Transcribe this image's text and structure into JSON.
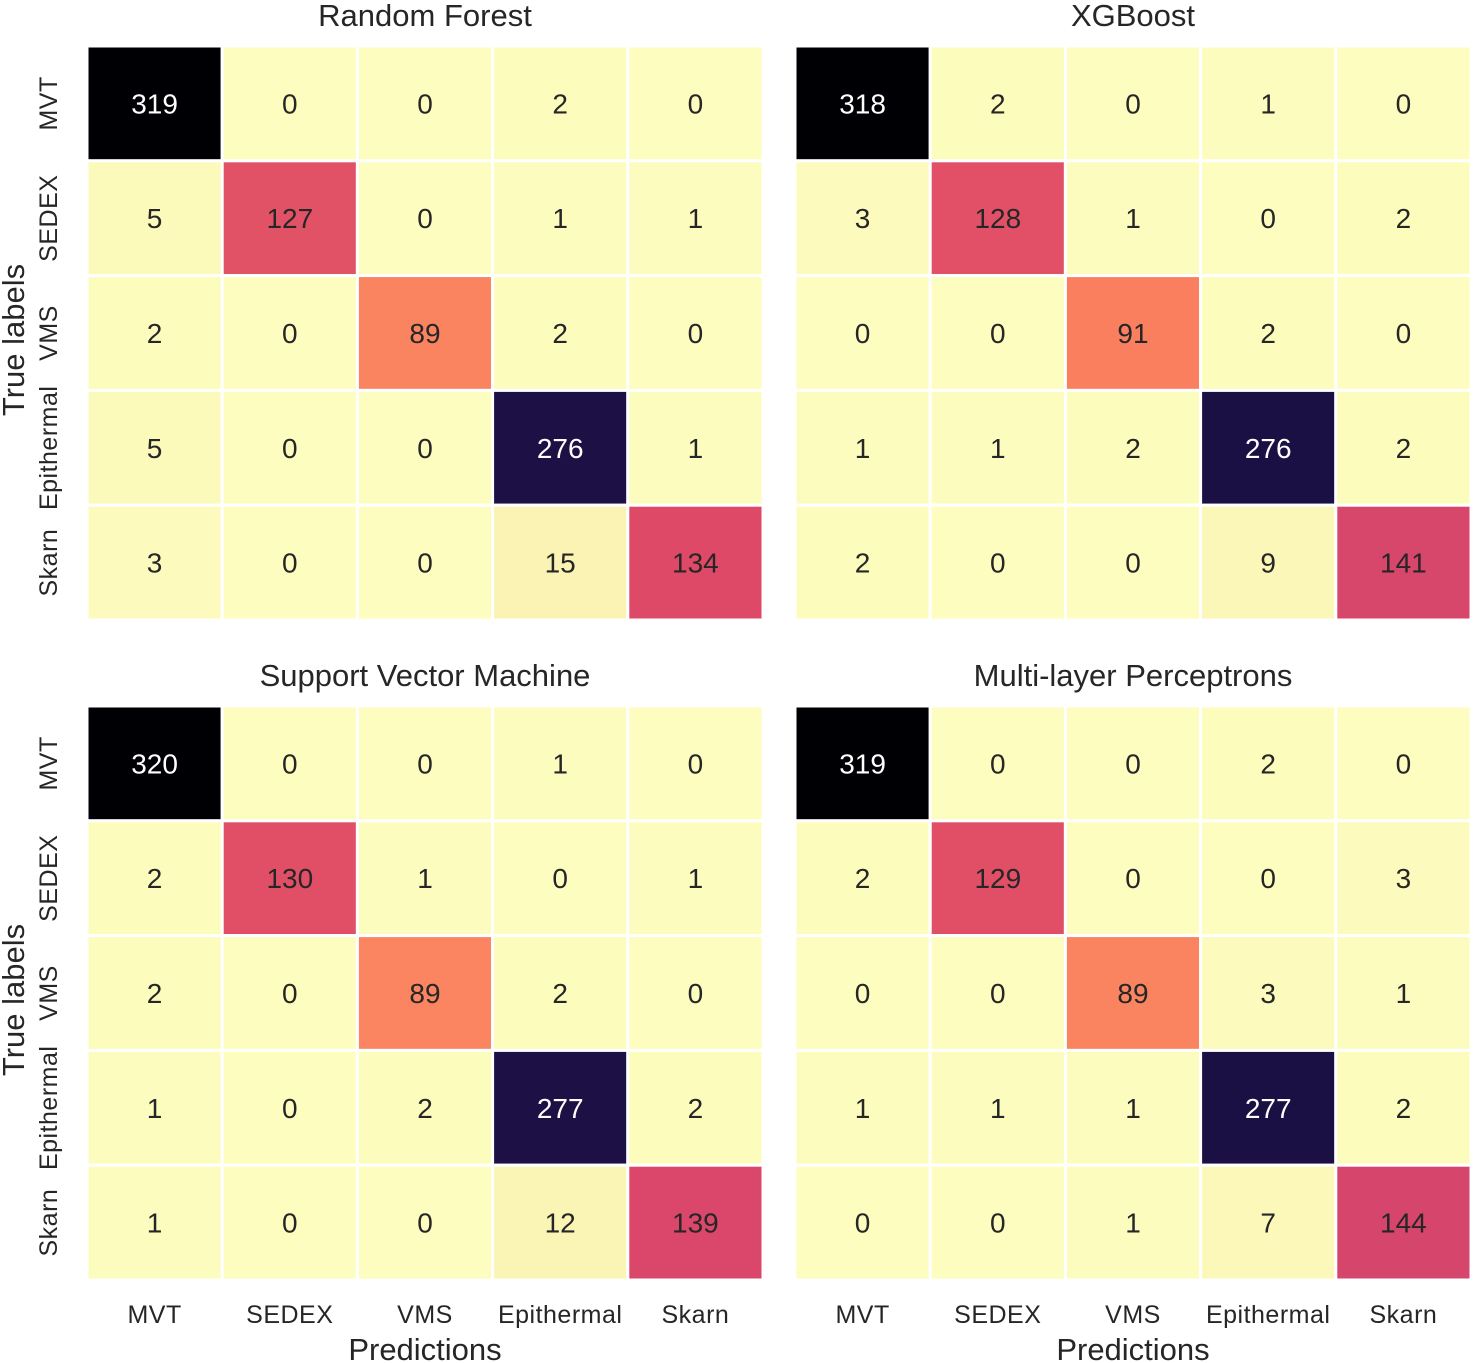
{
  "chart_data": [
    {
      "type": "heatmap",
      "title": "Random Forest",
      "xlabel": "Predictions",
      "ylabel": "True labels",
      "x_categories": [
        "MVT",
        "SEDEX",
        "VMS",
        "Epithermal",
        "Skarn"
      ],
      "y_categories": [
        "MVT",
        "SEDEX",
        "VMS",
        "Epithermal",
        "Skarn"
      ],
      "values": [
        [
          319,
          0,
          0,
          2,
          0
        ],
        [
          5,
          127,
          0,
          1,
          1
        ],
        [
          2,
          0,
          89,
          2,
          0
        ],
        [
          5,
          0,
          0,
          276,
          1
        ],
        [
          3,
          0,
          0,
          15,
          134
        ]
      ],
      "show_xticklabels": false,
      "show_yticklabels": true,
      "show_xlabel": false,
      "show_ylabel": true
    },
    {
      "type": "heatmap",
      "title": "XGBoost",
      "xlabel": "Predictions",
      "ylabel": "True labels",
      "x_categories": [
        "MVT",
        "SEDEX",
        "VMS",
        "Epithermal",
        "Skarn"
      ],
      "y_categories": [
        "MVT",
        "SEDEX",
        "VMS",
        "Epithermal",
        "Skarn"
      ],
      "values": [
        [
          318,
          2,
          0,
          1,
          0
        ],
        [
          3,
          128,
          1,
          0,
          2
        ],
        [
          0,
          0,
          91,
          2,
          0
        ],
        [
          1,
          1,
          2,
          276,
          2
        ],
        [
          2,
          0,
          0,
          9,
          141
        ]
      ],
      "show_xticklabels": false,
      "show_yticklabels": false,
      "show_xlabel": false,
      "show_ylabel": false
    },
    {
      "type": "heatmap",
      "title": "Support Vector Machine",
      "xlabel": "Predictions",
      "ylabel": "True labels",
      "x_categories": [
        "MVT",
        "SEDEX",
        "VMS",
        "Epithermal",
        "Skarn"
      ],
      "y_categories": [
        "MVT",
        "SEDEX",
        "VMS",
        "Epithermal",
        "Skarn"
      ],
      "values": [
        [
          320,
          0,
          0,
          1,
          0
        ],
        [
          2,
          130,
          1,
          0,
          1
        ],
        [
          2,
          0,
          89,
          2,
          0
        ],
        [
          1,
          0,
          2,
          277,
          2
        ],
        [
          1,
          0,
          0,
          12,
          139
        ]
      ],
      "show_xticklabels": true,
      "show_yticklabels": true,
      "show_xlabel": true,
      "show_ylabel": true
    },
    {
      "type": "heatmap",
      "title": "Multi-layer Perceptrons",
      "xlabel": "Predictions",
      "ylabel": "True labels",
      "x_categories": [
        "MVT",
        "SEDEX",
        "VMS",
        "Epithermal",
        "Skarn"
      ],
      "y_categories": [
        "MVT",
        "SEDEX",
        "VMS",
        "Epithermal",
        "Skarn"
      ],
      "values": [
        [
          319,
          0,
          0,
          2,
          0
        ],
        [
          2,
          129,
          0,
          0,
          3
        ],
        [
          0,
          0,
          89,
          3,
          1
        ],
        [
          1,
          1,
          1,
          277,
          2
        ],
        [
          0,
          0,
          1,
          7,
          144
        ]
      ],
      "show_xticklabels": true,
      "show_yticklabels": false,
      "show_xlabel": true,
      "show_ylabel": false
    }
  ],
  "colormap": "magma_r",
  "colorbar": false,
  "grid": false
}
